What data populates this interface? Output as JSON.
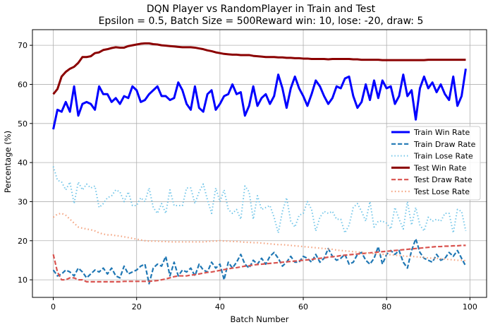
{
  "chart_data": {
    "type": "line",
    "title_line1": "DQN Player vs RandomPlayer in Train and Test",
    "title_line2": "Epsilon = 0.5, Batch Size = 500Reward win: 10, lose: -20, draw: 5",
    "xlabel": "Batch Number",
    "ylabel": "Percentage (%)",
    "xlim": [
      -5,
      104
    ],
    "ylim": [
      5.5,
      74
    ],
    "xticks": [
      0,
      20,
      40,
      60,
      80,
      100
    ],
    "yticks": [
      10,
      20,
      30,
      40,
      50,
      60,
      70
    ],
    "grid": true,
    "legend_position": "center-right",
    "series": [
      {
        "name": "Train Win Rate",
        "color": "#0000ff",
        "style": "solid",
        "width": 3,
        "values": [
          48.5,
          53.5,
          53.0,
          55.5,
          53.0,
          59.5,
          52.0,
          55.0,
          55.5,
          55.0,
          53.5,
          59.5,
          57.5,
          57.5,
          55.5,
          56.5,
          55.0,
          57.0,
          56.5,
          59.5,
          58.5,
          55.5,
          56.0,
          57.5,
          58.5,
          59.5,
          57.0,
          57.0,
          56.0,
          56.5,
          60.5,
          58.5,
          55.0,
          53.5,
          59.5,
          54.0,
          53.0,
          57.5,
          58.5,
          53.5,
          55.0,
          57.0,
          57.5,
          60.0,
          57.5,
          58.0,
          52.0,
          54.5,
          59.5,
          54.5,
          56.5,
          57.5,
          55.0,
          57.0,
          62.5,
          59.0,
          54.0,
          59.0,
          62.0,
          59.0,
          57.0,
          54.5,
          57.5,
          61.0,
          59.5,
          57.0,
          55.0,
          56.5,
          59.5,
          59.0,
          61.5,
          62.0,
          57.0,
          54.0,
          55.5,
          60.0,
          56.0,
          61.0,
          56.5,
          61.0,
          59.0,
          59.5,
          55.0,
          57.0,
          62.5,
          57.0,
          58.5,
          51.0,
          59.0,
          62.0,
          59.0,
          60.5,
          58.0,
          60.0,
          57.5,
          56.0,
          62.0,
          54.5,
          57.0,
          64.0
        ]
      },
      {
        "name": "Train Draw Rate",
        "color": "#1f77b4",
        "style": "dashed",
        "width": 2.2,
        "values": [
          12.5,
          11.0,
          11.5,
          12.5,
          12.0,
          11.0,
          13.0,
          12.0,
          10.5,
          11.5,
          12.5,
          12.0,
          13.0,
          11.5,
          13.0,
          11.0,
          10.5,
          13.5,
          11.5,
          12.0,
          12.5,
          13.5,
          14.0,
          9.0,
          13.0,
          14.0,
          13.5,
          16.0,
          11.0,
          14.5,
          11.0,
          12.5,
          12.0,
          13.0,
          11.0,
          14.0,
          12.5,
          12.0,
          14.5,
          13.0,
          14.0,
          10.0,
          14.5,
          13.0,
          14.5,
          16.5,
          14.0,
          13.0,
          15.0,
          14.0,
          15.5,
          14.0,
          16.0,
          17.0,
          15.5,
          13.5,
          14.5,
          16.0,
          14.5,
          14.5,
          16.0,
          15.5,
          14.5,
          16.5,
          14.5,
          15.5,
          18.0,
          16.0,
          15.0,
          15.5,
          16.5,
          14.0,
          14.5,
          16.5,
          17.0,
          15.0,
          14.0,
          15.5,
          18.5,
          14.0,
          16.5,
          17.5,
          16.5,
          17.5,
          14.5,
          13.0,
          17.5,
          20.5,
          17.0,
          15.5,
          15.0,
          14.5,
          16.5,
          15.0,
          15.5,
          17.0,
          16.0,
          17.5,
          15.5,
          13.5
        ]
      },
      {
        "name": "Train Lose Rate",
        "color": "#6ec4e8",
        "style": "dotted",
        "width": 2,
        "values": [
          39.0,
          35.5,
          35.0,
          33.0,
          35.0,
          29.5,
          35.0,
          33.0,
          34.5,
          33.5,
          34.0,
          28.5,
          29.5,
          31.0,
          31.5,
          33.0,
          32.5,
          30.0,
          32.5,
          29.0,
          29.0,
          31.0,
          30.0,
          33.5,
          28.5,
          27.0,
          29.5,
          27.0,
          33.0,
          29.0,
          29.0,
          29.0,
          33.5,
          33.5,
          29.5,
          32.5,
          34.5,
          30.5,
          27.0,
          33.5,
          30.0,
          33.0,
          28.0,
          27.0,
          28.0,
          25.5,
          34.0,
          32.5,
          25.5,
          31.5,
          28.0,
          28.5,
          29.0,
          26.0,
          22.0,
          27.5,
          31.0,
          25.0,
          23.5,
          26.5,
          27.0,
          30.0,
          28.0,
          22.5,
          26.0,
          27.5,
          27.0,
          27.5,
          25.5,
          25.5,
          22.0,
          24.0,
          28.5,
          29.5,
          27.5,
          25.0,
          30.0,
          23.5,
          25.0,
          25.0,
          24.5,
          23.0,
          28.5,
          25.5,
          23.0,
          30.0,
          24.0,
          28.5,
          24.0,
          22.5,
          26.0,
          25.0,
          25.5,
          25.0,
          27.0,
          27.0,
          22.0,
          28.0,
          27.5,
          22.5
        ]
      },
      {
        "name": "Test Win Rate",
        "color": "#8b0000",
        "style": "solid",
        "width": 3,
        "values": [
          57.5,
          58.8,
          62.0,
          63.2,
          64.0,
          64.5,
          65.5,
          67.0,
          67.0,
          67.2,
          68.0,
          68.2,
          68.8,
          69.0,
          69.3,
          69.5,
          69.4,
          69.4,
          69.8,
          70.0,
          70.2,
          70.4,
          70.5,
          70.5,
          70.3,
          70.2,
          70.0,
          69.9,
          69.8,
          69.7,
          69.6,
          69.5,
          69.5,
          69.5,
          69.4,
          69.2,
          69.0,
          68.7,
          68.5,
          68.2,
          68.0,
          67.8,
          67.7,
          67.6,
          67.6,
          67.5,
          67.5,
          67.5,
          67.3,
          67.2,
          67.1,
          67.0,
          67.0,
          67.0,
          66.9,
          66.9,
          66.8,
          66.8,
          66.7,
          66.7,
          66.6,
          66.6,
          66.5,
          66.5,
          66.5,
          66.5,
          66.4,
          66.5,
          66.5,
          66.5,
          66.5,
          66.5,
          66.4,
          66.4,
          66.3,
          66.3,
          66.3,
          66.3,
          66.3,
          66.2,
          66.2,
          66.2,
          66.2,
          66.2,
          66.2,
          66.2,
          66.2,
          66.2,
          66.2,
          66.2,
          66.3,
          66.3,
          66.3,
          66.3,
          66.3,
          66.3,
          66.3,
          66.3,
          66.3,
          66.3
        ]
      },
      {
        "name": "Test Draw Rate",
        "color": "#d9534f",
        "style": "dashed",
        "width": 2.2,
        "values": [
          16.5,
          12.0,
          10.0,
          10.0,
          10.5,
          10.5,
          10.0,
          10.0,
          9.5,
          9.5,
          9.5,
          9.5,
          9.5,
          9.5,
          9.5,
          9.5,
          9.5,
          9.6,
          9.6,
          9.6,
          9.6,
          9.6,
          9.6,
          9.6,
          9.7,
          9.8,
          10.0,
          10.2,
          10.5,
          10.8,
          11.0,
          11.0,
          11.0,
          11.2,
          11.3,
          11.5,
          11.7,
          11.9,
          12.0,
          12.2,
          12.4,
          12.6,
          12.8,
          13.0,
          13.1,
          13.3,
          13.5,
          13.6,
          13.8,
          13.9,
          14.0,
          14.1,
          14.2,
          14.3,
          14.4,
          14.5,
          14.6,
          14.7,
          14.8,
          14.9,
          15.0,
          15.1,
          15.2,
          15.4,
          15.5,
          15.6,
          15.8,
          15.9,
          16.0,
          16.2,
          16.3,
          16.4,
          16.5,
          16.6,
          16.7,
          16.8,
          16.9,
          17.0,
          17.1,
          17.2,
          17.3,
          17.4,
          17.5,
          17.6,
          17.7,
          17.8,
          17.9,
          18.0,
          18.1,
          18.2,
          18.3,
          18.4,
          18.5,
          18.5,
          18.6,
          18.6,
          18.7,
          18.7,
          18.8,
          18.8
        ]
      },
      {
        "name": "Test Lose Rate",
        "color": "#f4a582",
        "style": "dotted",
        "width": 2.2,
        "values": [
          26.0,
          26.8,
          27.0,
          26.5,
          25.5,
          24.5,
          23.5,
          23.2,
          23.0,
          22.8,
          22.5,
          22.0,
          21.7,
          21.5,
          21.5,
          21.3,
          21.2,
          21.0,
          20.8,
          20.6,
          20.4,
          20.2,
          20.0,
          19.9,
          19.9,
          19.9,
          19.8,
          19.8,
          19.7,
          19.7,
          19.7,
          19.7,
          19.7,
          19.7,
          19.7,
          19.7,
          19.7,
          19.8,
          19.9,
          19.9,
          20.0,
          19.9,
          19.9,
          19.8,
          19.8,
          19.7,
          19.6,
          19.6,
          19.5,
          19.5,
          19.4,
          19.3,
          19.2,
          19.1,
          19.0,
          19.0,
          18.9,
          18.8,
          18.7,
          18.6,
          18.5,
          18.4,
          18.3,
          18.2,
          18.1,
          18.0,
          17.9,
          17.8,
          17.6,
          17.5,
          17.4,
          17.3,
          17.2,
          17.1,
          17.0,
          16.9,
          16.8,
          16.7,
          16.6,
          16.5,
          16.5,
          16.4,
          16.3,
          16.2,
          16.1,
          16.0,
          16.0,
          15.9,
          15.8,
          15.7,
          15.6,
          15.5,
          15.5,
          15.4,
          15.3,
          15.2,
          15.1,
          15.0,
          15.0,
          14.9
        ]
      }
    ]
  }
}
